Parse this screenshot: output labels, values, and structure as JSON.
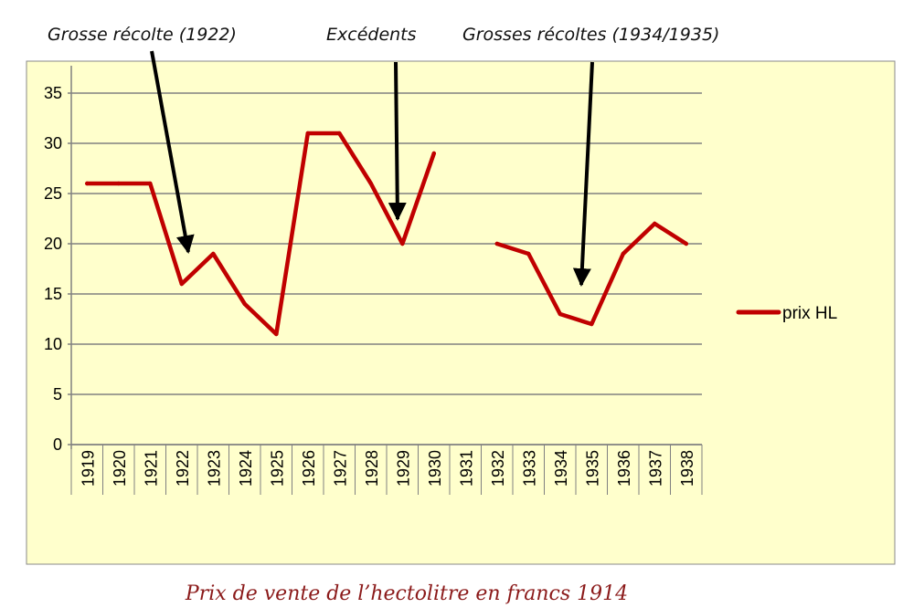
{
  "colors": {
    "plot_background": "#FFFFCC",
    "series_line": "#C00000",
    "arrow": "#000000",
    "caption": "#8B1A1A",
    "gridline": "#808080"
  },
  "caption": "Prix de vente de l’hectolitre en francs 1914",
  "annotations": [
    {
      "text": "Grosse récolte (1922)",
      "points_to_year": "1922"
    },
    {
      "text": "Excédents",
      "points_to_year": "1929"
    },
    {
      "text": "Grosses récoltes (1934/1935)",
      "points_to_year": "1935"
    }
  ],
  "chart_data": {
    "type": "line",
    "categories": [
      "1919",
      "1920",
      "1921",
      "1922",
      "1923",
      "1924",
      "1925",
      "1926",
      "1927",
      "1928",
      "1929",
      "1930",
      "1931",
      "1932",
      "1933",
      "1934",
      "1935",
      "1936",
      "1937",
      "1938"
    ],
    "series": [
      {
        "name": "prix HL",
        "values": [
          26,
          26,
          26,
          16,
          19,
          14,
          11,
          31,
          31,
          26,
          20,
          29,
          null,
          20,
          19,
          13,
          12,
          19,
          22,
          20
        ]
      }
    ],
    "ylim": [
      0,
      35
    ],
    "yticks": [
      0,
      5,
      10,
      15,
      20,
      25,
      30,
      35
    ],
    "grid": true,
    "legend_position": "right",
    "title": "",
    "xlabel": "",
    "ylabel": ""
  }
}
